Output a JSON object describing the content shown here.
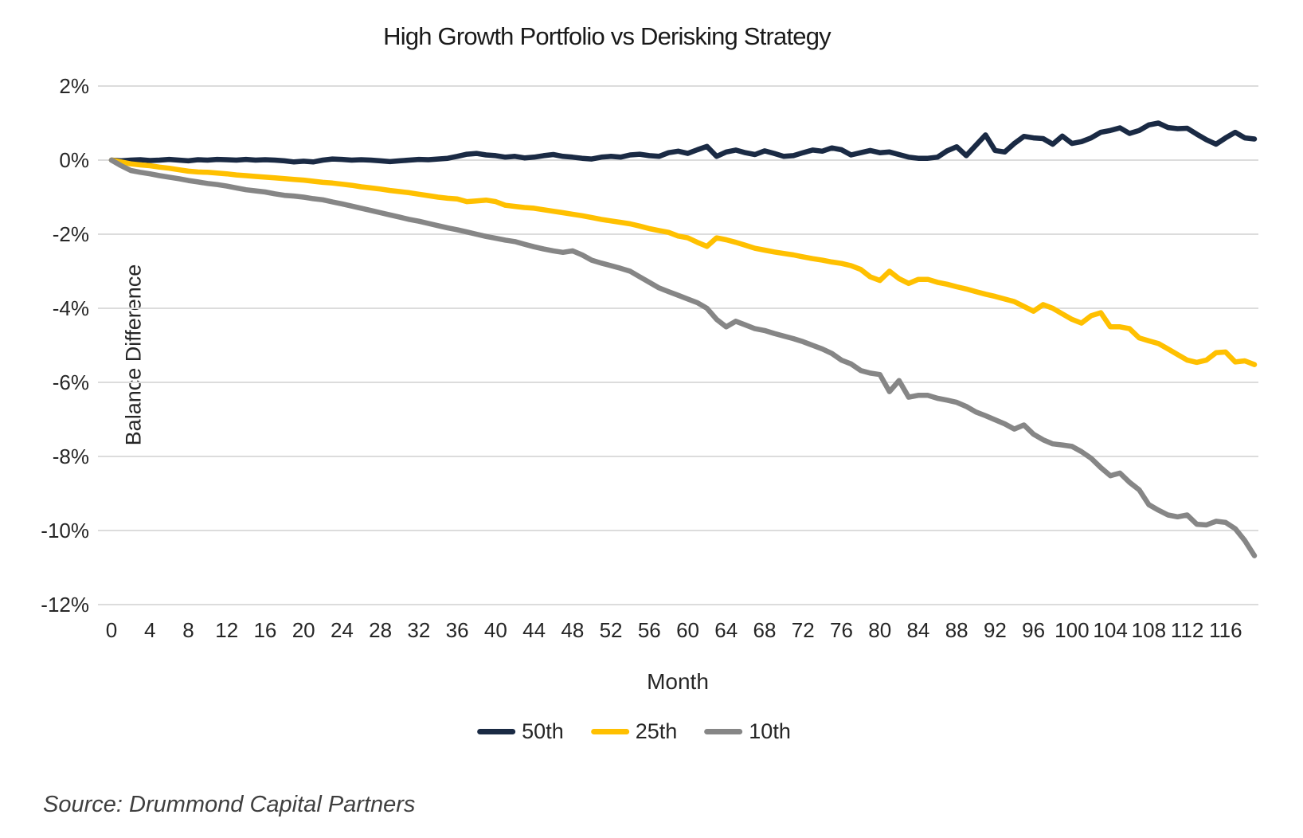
{
  "title": "High Growth Portfolio vs Derisking Strategy",
  "source": "Source: Drummond Capital Partners",
  "colors": {
    "navy": "#1A2A44",
    "gold": "#FFC000",
    "gray": "#868686",
    "gridline": "#DCDCDC",
    "text": "#262626"
  },
  "chart_data": {
    "type": "line",
    "title": "High Growth Portfolio vs Derisking Strategy",
    "xlabel": "Month",
    "ylabel": "Balance Difference",
    "x_start": 0,
    "x_step": 1,
    "x_max": 119,
    "xlim": [
      0,
      119
    ],
    "ylim": [
      -12,
      2
    ],
    "grid": "horizontal",
    "legend_position": "bottom",
    "x_ticks": [
      0,
      4,
      8,
      12,
      16,
      20,
      24,
      28,
      32,
      36,
      40,
      44,
      48,
      52,
      56,
      60,
      64,
      68,
      72,
      76,
      80,
      84,
      88,
      92,
      96,
      100,
      104,
      108,
      112,
      116
    ],
    "y_tick_labels": [
      "2%",
      "0%",
      "-2%",
      "-4%",
      "-6%",
      "-8%",
      "-10%",
      "-12%"
    ],
    "y_tick_values": [
      2,
      0,
      -2,
      -4,
      -6,
      -8,
      -10,
      -12
    ],
    "series": [
      {
        "name": "50th",
        "color": "#1A2A44",
        "values": [
          0.0,
          -0.02,
          0.0,
          0.01,
          -0.01,
          0.0,
          0.02,
          0.0,
          -0.02,
          0.01,
          0.0,
          0.02,
          0.01,
          0.0,
          0.02,
          0.0,
          0.01,
          0.0,
          -0.02,
          -0.05,
          -0.03,
          -0.05,
          0.0,
          0.03,
          0.02,
          0.0,
          0.01,
          0.0,
          -0.02,
          -0.04,
          -0.02,
          0.0,
          0.02,
          0.01,
          0.03,
          0.05,
          0.1,
          0.16,
          0.18,
          0.14,
          0.12,
          0.08,
          0.1,
          0.06,
          0.08,
          0.12,
          0.15,
          0.1,
          0.08,
          0.05,
          0.03,
          0.08,
          0.1,
          0.08,
          0.14,
          0.16,
          0.12,
          0.1,
          0.2,
          0.24,
          0.18,
          0.28,
          0.37,
          0.1,
          0.22,
          0.27,
          0.2,
          0.15,
          0.25,
          0.18,
          0.1,
          0.12,
          0.2,
          0.27,
          0.24,
          0.33,
          0.28,
          0.14,
          0.2,
          0.26,
          0.2,
          0.22,
          0.15,
          0.08,
          0.05,
          0.05,
          0.08,
          0.25,
          0.36,
          0.12,
          0.4,
          0.68,
          0.26,
          0.22,
          0.45,
          0.64,
          0.6,
          0.58,
          0.43,
          0.65,
          0.45,
          0.5,
          0.6,
          0.75,
          0.8,
          0.87,
          0.72,
          0.8,
          0.95,
          1.0,
          0.88,
          0.85,
          0.86,
          0.7,
          0.55,
          0.43,
          0.6,
          0.75,
          0.6,
          0.57
        ]
      },
      {
        "name": "25th",
        "color": "#FFC000",
        "values": [
          0.0,
          -0.05,
          -0.1,
          -0.13,
          -0.15,
          -0.19,
          -0.22,
          -0.26,
          -0.3,
          -0.32,
          -0.33,
          -0.35,
          -0.37,
          -0.4,
          -0.42,
          -0.44,
          -0.46,
          -0.48,
          -0.5,
          -0.52,
          -0.54,
          -0.57,
          -0.6,
          -0.62,
          -0.65,
          -0.68,
          -0.72,
          -0.75,
          -0.78,
          -0.82,
          -0.85,
          -0.88,
          -0.92,
          -0.96,
          -1.0,
          -1.03,
          -1.05,
          -1.12,
          -1.1,
          -1.08,
          -1.12,
          -1.22,
          -1.25,
          -1.28,
          -1.3,
          -1.34,
          -1.38,
          -1.42,
          -1.46,
          -1.5,
          -1.55,
          -1.6,
          -1.64,
          -1.68,
          -1.72,
          -1.78,
          -1.85,
          -1.9,
          -1.95,
          -2.05,
          -2.1,
          -2.22,
          -2.33,
          -2.1,
          -2.15,
          -2.22,
          -2.3,
          -2.38,
          -2.43,
          -2.48,
          -2.52,
          -2.56,
          -2.61,
          -2.66,
          -2.7,
          -2.75,
          -2.79,
          -2.85,
          -2.95,
          -3.15,
          -3.25,
          -3.0,
          -3.2,
          -3.33,
          -3.22,
          -3.22,
          -3.3,
          -3.35,
          -3.42,
          -3.48,
          -3.55,
          -3.62,
          -3.68,
          -3.75,
          -3.82,
          -3.95,
          -4.08,
          -3.9,
          -4.0,
          -4.15,
          -4.3,
          -4.4,
          -4.2,
          -4.12,
          -4.5,
          -4.5,
          -4.55,
          -4.8,
          -4.88,
          -4.95,
          -5.1,
          -5.25,
          -5.4,
          -5.46,
          -5.4,
          -5.2,
          -5.18,
          -5.45,
          -5.42,
          -5.52
        ]
      },
      {
        "name": "10th",
        "color": "#868686",
        "values": [
          0.0,
          -0.15,
          -0.28,
          -0.33,
          -0.37,
          -0.42,
          -0.46,
          -0.5,
          -0.55,
          -0.59,
          -0.63,
          -0.66,
          -0.7,
          -0.75,
          -0.8,
          -0.83,
          -0.86,
          -0.91,
          -0.95,
          -0.97,
          -1.0,
          -1.04,
          -1.07,
          -1.13,
          -1.18,
          -1.24,
          -1.3,
          -1.36,
          -1.42,
          -1.48,
          -1.54,
          -1.6,
          -1.65,
          -1.71,
          -1.77,
          -1.83,
          -1.88,
          -1.94,
          -2.0,
          -2.06,
          -2.11,
          -2.16,
          -2.2,
          -2.27,
          -2.34,
          -2.4,
          -2.45,
          -2.49,
          -2.45,
          -2.56,
          -2.7,
          -2.78,
          -2.85,
          -2.92,
          -3.0,
          -3.15,
          -3.3,
          -3.45,
          -3.55,
          -3.65,
          -3.75,
          -3.85,
          -4.0,
          -4.3,
          -4.5,
          -4.35,
          -4.45,
          -4.55,
          -4.6,
          -4.68,
          -4.75,
          -4.82,
          -4.9,
          -5.0,
          -5.1,
          -5.22,
          -5.4,
          -5.5,
          -5.68,
          -5.75,
          -5.79,
          -6.25,
          -5.95,
          -6.4,
          -6.35,
          -6.35,
          -6.43,
          -6.48,
          -6.54,
          -6.65,
          -6.8,
          -6.9,
          -7.01,
          -7.12,
          -7.26,
          -7.15,
          -7.4,
          -7.55,
          -7.66,
          -7.69,
          -7.73,
          -7.87,
          -8.05,
          -8.3,
          -8.52,
          -8.45,
          -8.7,
          -8.9,
          -9.3,
          -9.45,
          -9.58,
          -9.63,
          -9.58,
          -9.83,
          -9.85,
          -9.75,
          -9.78,
          -9.95,
          -10.27,
          -10.68
        ]
      }
    ]
  }
}
